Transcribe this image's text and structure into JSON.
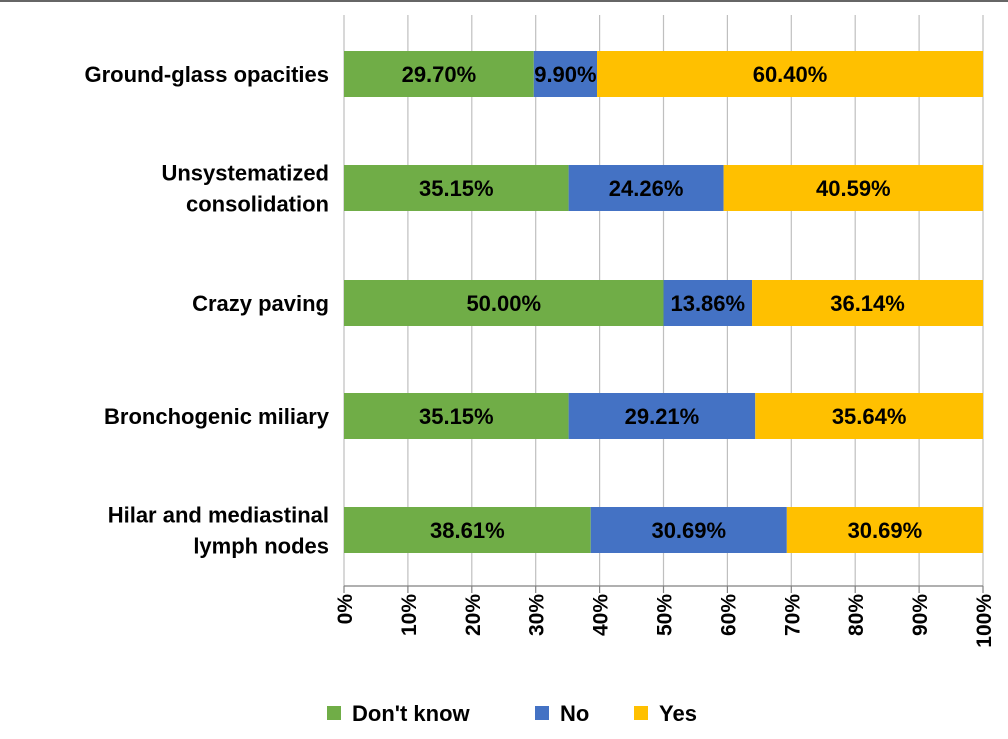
{
  "chart_data": {
    "type": "bar",
    "orientation": "horizontal",
    "stacked": true,
    "categories": [
      [
        "Ground-glass opacities"
      ],
      [
        "Unsystematized",
        "consolidation"
      ],
      [
        "Crazy paving"
      ],
      [
        "Bronchogenic miliary"
      ],
      [
        "Hilar and mediastinal",
        "lymph nodes"
      ]
    ],
    "series": [
      {
        "name": "Don't know",
        "color": "#70AD47",
        "values": [
          29.7,
          35.15,
          50.0,
          35.15,
          38.61
        ],
        "labels": [
          "29.70%",
          "35.15%",
          "50.00%",
          "35.15%",
          "38.61%"
        ]
      },
      {
        "name": "No",
        "color": "#4472C4",
        "values": [
          9.9,
          24.26,
          13.86,
          29.21,
          30.69
        ],
        "labels": [
          "9.90%",
          "24.26%",
          "13.86%",
          "29.21%",
          "30.69%"
        ]
      },
      {
        "name": "Yes",
        "color": "#FFC000",
        "values": [
          60.4,
          40.59,
          36.14,
          35.64,
          30.69
        ],
        "labels": [
          "60.40%",
          "40.59%",
          "36.14%",
          "35.64%",
          "30.69%"
        ]
      }
    ],
    "xlim": [
      0,
      100
    ],
    "xticks": [
      "0%",
      "10%",
      "20%",
      "30%",
      "40%",
      "50%",
      "60%",
      "70%",
      "80%",
      "90%",
      "100%"
    ],
    "grid": true,
    "legend": "bottom",
    "title": "",
    "xlabel": "",
    "ylabel": ""
  }
}
